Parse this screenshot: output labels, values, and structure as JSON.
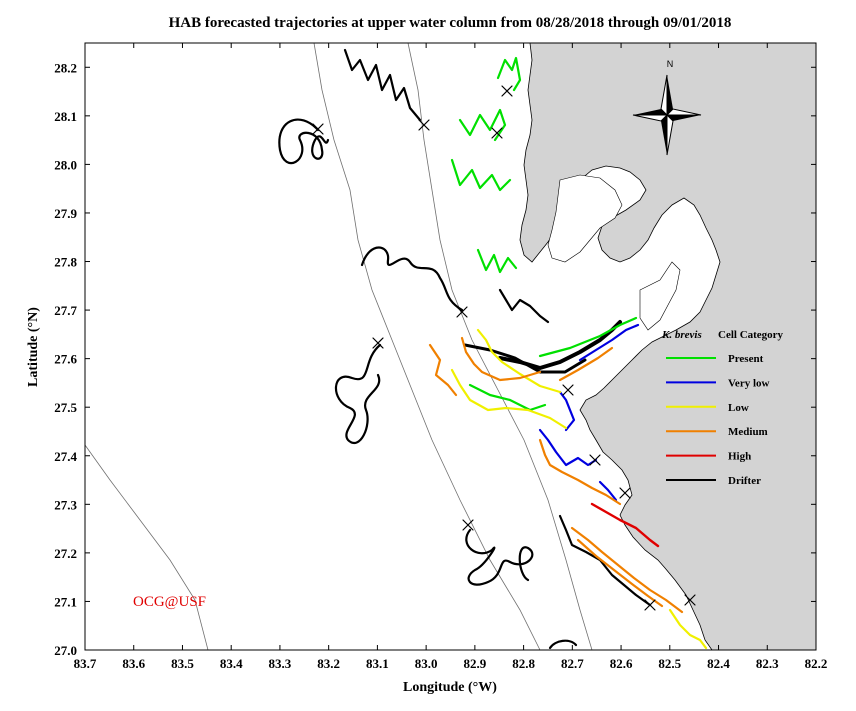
{
  "chart_data": {
    "type": "map",
    "title": "HAB forecasted trajectories at upper water column from 08/28/2018 through 09/01/2018",
    "xlabel": "Longitude (°W)",
    "ylabel": "Latitude (°N)",
    "x_ticks": [
      "83.7",
      "83.6",
      "83.5",
      "83.4",
      "83.3",
      "83.2",
      "83.1",
      "83.0",
      "82.9",
      "82.8",
      "82.7",
      "82.6",
      "82.5",
      "82.4",
      "82.3",
      "82.2"
    ],
    "y_ticks": [
      "28.2",
      "28.1",
      "28.0",
      "27.9",
      "27.8",
      "27.7",
      "27.6",
      "27.5",
      "27.4",
      "27.3",
      "27.2",
      "27.1",
      "27.0"
    ],
    "xlim": [
      83.7,
      82.2
    ],
    "ylim": [
      27.0,
      28.25
    ],
    "north_label": "N",
    "credit": "OCG@USF",
    "legend": {
      "title_italic": "K. brevis",
      "title_rest": "Cell Category",
      "entries": [
        {
          "label": "Present",
          "color": "#00e000"
        },
        {
          "label": "Very low",
          "color": "#0000e0"
        },
        {
          "label": "Low",
          "color": "#f0f000"
        },
        {
          "label": "Medium",
          "color": "#f08000"
        },
        {
          "label": "High",
          "color": "#e00000"
        },
        {
          "label": "Drifter",
          "color": "#000000"
        }
      ]
    }
  }
}
